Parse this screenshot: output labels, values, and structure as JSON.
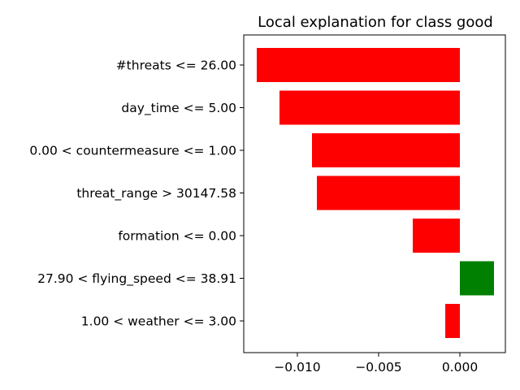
{
  "chart_data": {
    "type": "bar",
    "orientation": "horizontal",
    "title": "Local explanation for class good",
    "xlabel": "",
    "ylabel": "",
    "categories": [
      "#threats <= 26.00",
      "day_time <= 5.00",
      "0.00 < countermeasure <= 1.00",
      "threat_range > 30147.58",
      "formation <= 0.00",
      "27.90 < flying_speed <= 38.91",
      "1.00 < weather <= 3.00"
    ],
    "values": [
      -0.0125,
      -0.0111,
      -0.0091,
      -0.0088,
      -0.0029,
      0.0021,
      -0.0009
    ],
    "xlim": [
      -0.0133,
      0.0028
    ],
    "xticks": [
      -0.01,
      -0.005,
      0.0
    ],
    "xtick_labels": [
      "−0.010",
      "−0.005",
      "0.000"
    ],
    "colors": {
      "positive": "#008000",
      "negative": "#ff0000"
    },
    "grid": false,
    "legend": "none"
  }
}
